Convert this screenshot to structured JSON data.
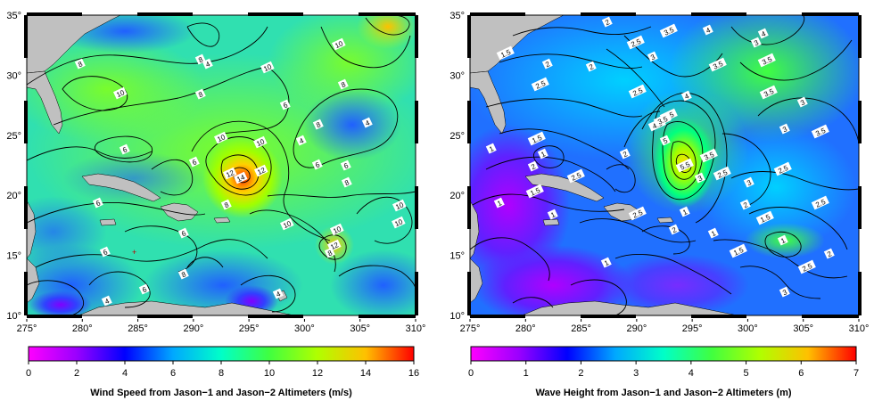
{
  "panels": [
    {
      "id": "wind",
      "lon_ticks": [
        "275°",
        "280°",
        "285°",
        "290°",
        "295°",
        "300°",
        "305°",
        "310°"
      ],
      "lat_ticks": [
        "35°",
        "30°",
        "25°",
        "20°",
        "15°",
        "10°"
      ],
      "colorbar": {
        "title": "Wind Speed from Jason−1 and Jason−2 Altimeters (m/s)",
        "ticks": [
          "0",
          "2",
          "4",
          "6",
          "8",
          "10",
          "12",
          "14",
          "16"
        ],
        "min": 0,
        "max": 16
      },
      "contour_labels": [
        "10",
        "10",
        "8",
        "8",
        "10",
        "8",
        "6",
        "6",
        "4",
        "4",
        "8",
        "10",
        "10",
        "8",
        "6",
        "12",
        "14",
        "12",
        "10",
        "6",
        "4",
        "6",
        "8",
        "10",
        "10",
        "10",
        "12",
        "6",
        "6",
        "8",
        "6",
        "8",
        "4",
        "6",
        "4",
        "8"
      ]
    },
    {
      "id": "wave",
      "lon_ticks": [
        "275°",
        "280°",
        "285°",
        "290°",
        "295°",
        "300°",
        "305°",
        "310°"
      ],
      "lat_ticks": [
        "35°",
        "30°",
        "25°",
        "20°",
        "15°",
        "10°"
      ],
      "colorbar": {
        "title": "Wave Height from Jason−1 and Jason−2 Altimeters (m)",
        "ticks": [
          "0",
          "1",
          "2",
          "3",
          "4",
          "5",
          "6",
          "7"
        ],
        "min": 0,
        "max": 7
      },
      "contour_labels": [
        "2",
        "1.5",
        "2",
        "2.5",
        "3.5",
        "4",
        "3.5",
        "3",
        "2.5",
        "2",
        "2.5",
        "3",
        "3.5",
        "4",
        "3.5",
        "4.5",
        "5",
        "5.5",
        "4.5",
        "3.5",
        "3",
        "2.5",
        "2",
        "1.5",
        "1",
        "1",
        "1",
        "1",
        "1.5",
        "2",
        "2.5",
        "3",
        "3.5",
        "2.5",
        "2",
        "1.5",
        "1",
        "1",
        "1",
        "1.5",
        "1",
        "2.5",
        "2",
        "3",
        "2.5",
        "3",
        "4",
        "3.5",
        "3",
        "2.5",
        "2"
      ]
    }
  ],
  "colors": {
    "land": "#c0c0c0",
    "scale": [
      "#ff00ff",
      "#7c00ff",
      "#0000ff",
      "#00a8ff",
      "#00ffe0",
      "#00ff60",
      "#a0ff00",
      "#ffd000",
      "#ff0000"
    ]
  }
}
